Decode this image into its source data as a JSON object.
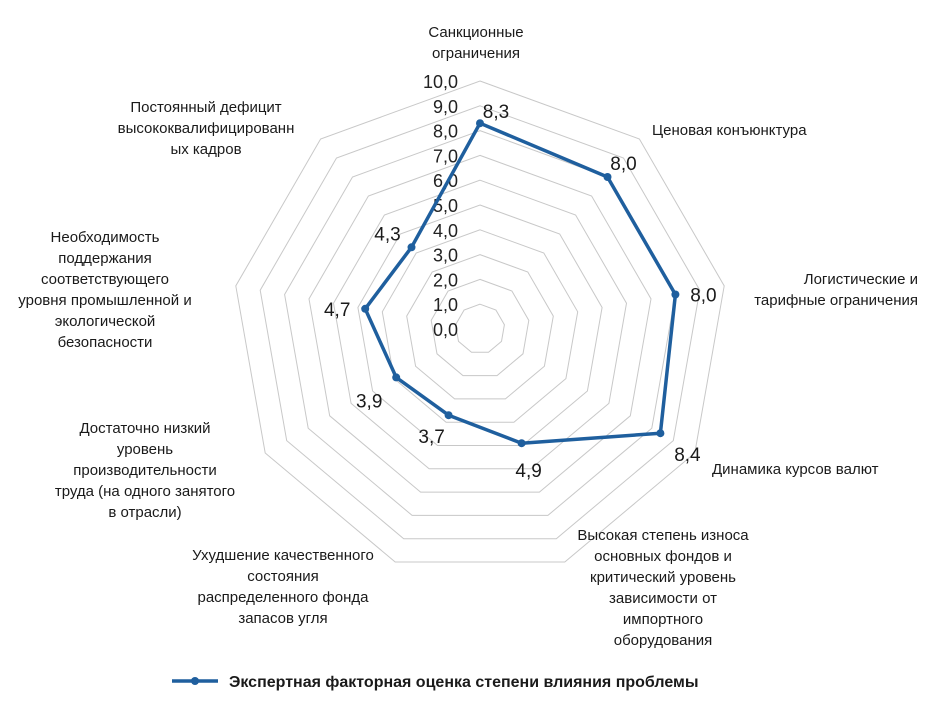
{
  "chart_data": {
    "type": "radar",
    "categories": [
      "Санкционные ограничения",
      "Ценовая конъюнктура",
      "Логистические и тарифные ограничения",
      "Динамика курсов валют",
      "Высокая степень износа основных фондов и критический уровень зависимости от импортного оборудования",
      "Ухудшение качественного состояния распределенного фонда запасов угля",
      "Достаточно низкий уровень производительности труда (на одного занятого в отрасли)",
      "Необходимость поддержания соответствующего уровня промышленной и экологической безопасности",
      "Постоянный дефицит высококвалифицированных кадров"
    ],
    "category_lines": [
      [
        "Санкционные",
        "ограничения"
      ],
      [
        "Ценовая конъюнктура"
      ],
      [
        "Логистические и",
        "тарифные ограничения"
      ],
      [
        "Динамика курсов валют"
      ],
      [
        "Высокая степень износа",
        "основных фондов и",
        "критический уровень",
        "зависимости от",
        "импортного",
        "оборудования"
      ],
      [
        "Ухудшение качественного",
        "состояния",
        "распределенного фонда",
        "запасов угля"
      ],
      [
        "Достаточно низкий",
        "уровень",
        "производительности",
        "труда (на одного занятого",
        "в отрасли)"
      ],
      [
        "Необходимость",
        "поддержания",
        "соответствующего",
        "уровня промышленной и",
        "экологической",
        "безопасности"
      ],
      [
        "Постоянный дефицит",
        "высококвалифицированн",
        "ых кадров"
      ]
    ],
    "series": [
      {
        "name": "Экспертная факторная оценка степени влияния проблемы",
        "values": [
          8.3,
          8.0,
          8.0,
          8.4,
          4.9,
          3.7,
          3.9,
          4.7,
          4.3
        ],
        "labels": [
          "8,3",
          "8,0",
          "8,0",
          "8,4",
          "4,9",
          "3,7",
          "3,9",
          "4,7",
          "4,3"
        ],
        "color": "#1f5f9e"
      }
    ],
    "rlim": [
      0,
      10
    ],
    "ticks": [
      0,
      1,
      2,
      3,
      4,
      5,
      6,
      7,
      8,
      9,
      10
    ],
    "tick_labels": [
      "0,0",
      "1,0",
      "2,0",
      "3,0",
      "4,0",
      "5,0",
      "6,0",
      "7,0",
      "8,0",
      "9,0",
      "10,0"
    ],
    "grid": true,
    "legend_position": "bottom"
  }
}
